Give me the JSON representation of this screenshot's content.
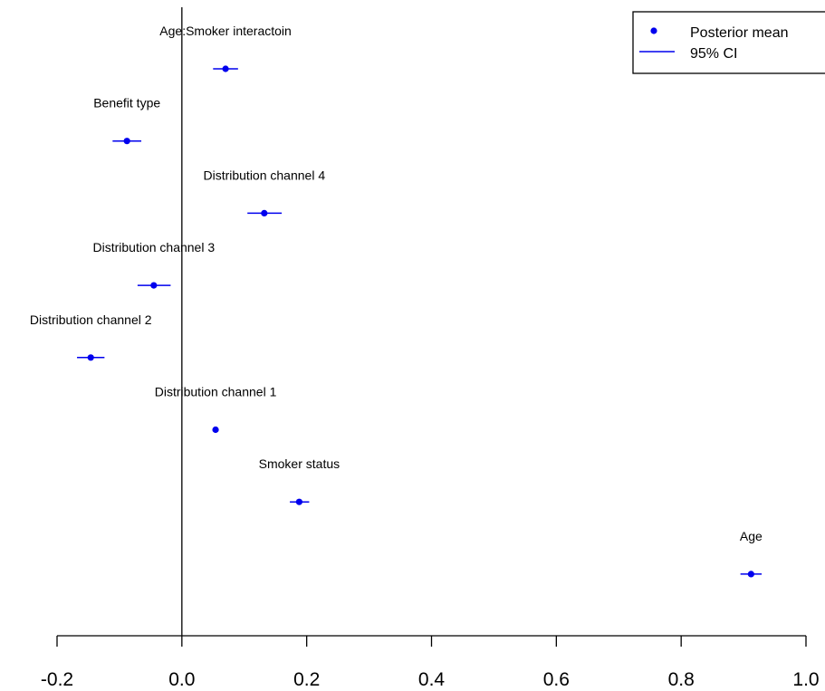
{
  "chart_data": {
    "type": "scatter",
    "title": "",
    "xlabel": "",
    "ylabel": "",
    "xlim": [
      -0.2,
      1.0
    ],
    "x_ticks": [
      "-0.2",
      "0.0",
      "0.2",
      "0.4",
      "0.6",
      "0.8",
      "1.0"
    ],
    "tick_values": [
      -0.2,
      0.0,
      0.2,
      0.4,
      0.6,
      0.8,
      1.0
    ],
    "reference_line_x": 0,
    "grid": false,
    "legend_position": "top-right",
    "legend": {
      "mean_label": "Posterior mean",
      "ci_label": "95% CI"
    },
    "point_color": "#0000ee",
    "points": [
      {
        "label": "Age:Smoker interactoin",
        "mean": 0.07,
        "lower": 0.05,
        "upper": 0.09
      },
      {
        "label": "Benefit type",
        "mean": -0.088,
        "lower": -0.111,
        "upper": -0.065
      },
      {
        "label": "Distribution channel 4",
        "mean": 0.132,
        "lower": 0.105,
        "upper": 0.16
      },
      {
        "label": "Distribution channel 3",
        "mean": -0.045,
        "lower": -0.071,
        "upper": -0.018
      },
      {
        "label": "Distribution channel 2",
        "mean": -0.146,
        "lower": -0.168,
        "upper": -0.124
      },
      {
        "label": "Distribution channel 1",
        "mean": 0.054,
        "lower": 0.051,
        "upper": 0.057
      },
      {
        "label": "Smoker status",
        "mean": 0.188,
        "lower": 0.173,
        "upper": 0.204
      },
      {
        "label": "Age",
        "mean": 0.912,
        "lower": 0.895,
        "upper": 0.929
      }
    ]
  }
}
